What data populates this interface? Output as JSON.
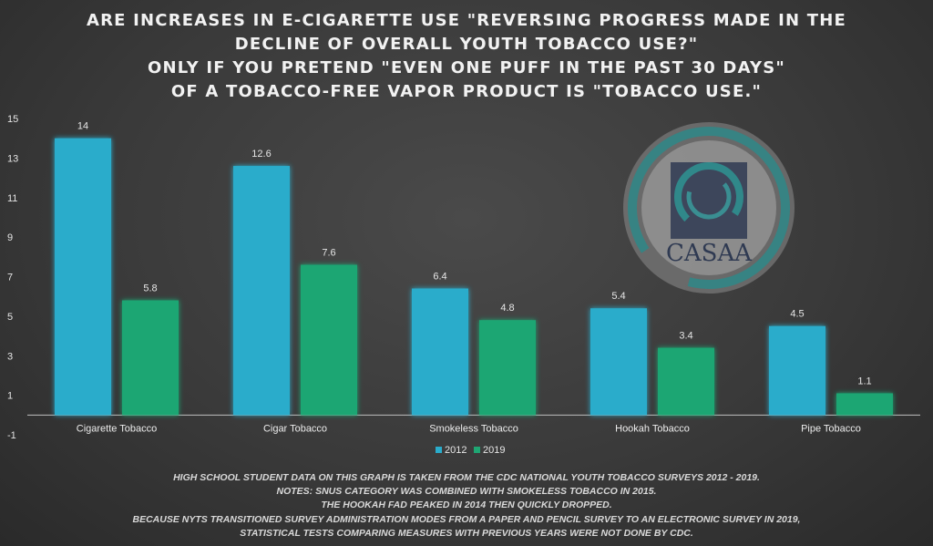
{
  "title_lines": [
    "Are increases in e-cigarette use \"reversing progress made in the",
    "decline of overall youth tobacco use?\"",
    "Only if you pretend \"even one puff in the past 30 days\"",
    "of a tobacco-free vapor product is \"tobacco use.\""
  ],
  "logo": {
    "text": "CASAA",
    "icon": "casaa-logo"
  },
  "notes": [
    "High school student data on this graph is taken from the CDC National Youth Tobacco Surveys 2012 - 2019.",
    "Notes: Snus category was combined with smokeless tobacco in 2015.",
    "The hookah fad peaked in 2014 then quickly dropped.",
    "Because NYTS transitioned survey administration modes from a paper and pencil survey to an electronic survey in 2019,",
    "statistical tests comparing measures with previous years were not done by CDC."
  ],
  "chart_data": {
    "type": "bar",
    "categories": [
      "Cigarette Tobacco",
      "Cigar Tobacco",
      "Smokeless Tobacco",
      "Hookah Tobacco",
      "Pipe Tobacco"
    ],
    "series": [
      {
        "name": "2012",
        "values": [
          14,
          12.6,
          6.4,
          5.4,
          4.5
        ],
        "color": "#2aaccb"
      },
      {
        "name": "2019",
        "values": [
          5.8,
          7.6,
          4.8,
          3.4,
          1.1
        ],
        "color": "#1fa673"
      }
    ],
    "ylim": [
      -1,
      15
    ],
    "yticks": [
      15,
      13,
      11,
      9,
      7,
      5,
      3,
      1,
      -1
    ],
    "grid": false,
    "legend_position": "bottom"
  }
}
